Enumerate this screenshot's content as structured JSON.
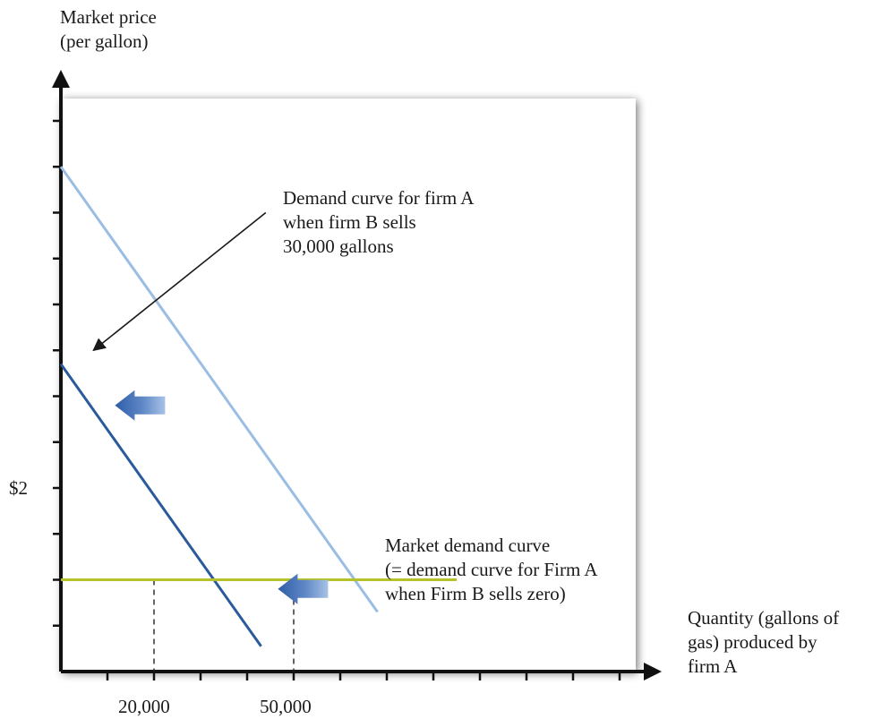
{
  "chart_data": {
    "type": "line",
    "ylabel_lines": [
      "Market price",
      "(per gallon)"
    ],
    "xlabel_lines": [
      "Quantity (gallons of",
      "gas) produced by",
      "firm A"
    ],
    "x_tick_labels": [
      {
        "value": 20000,
        "label": "20,000"
      },
      {
        "value": 50000,
        "label": "50,000"
      }
    ],
    "y_tick_labels": [
      {
        "value": 2,
        "label": "$2"
      }
    ],
    "xlim": [
      0,
      130000
    ],
    "ylim": [
      0,
      12
    ],
    "x_tick_step": 10000,
    "y_tick_step": 1,
    "series": [
      {
        "name": "Market demand curve",
        "color": "#9bbde3",
        "points": [
          [
            0,
            11
          ],
          [
            68000,
            1.3
          ]
        ]
      },
      {
        "name": "Demand curve for firm A when firm B sells 30,000 gallons",
        "color": "#2b5a9c",
        "points": [
          [
            0,
            6.7
          ],
          [
            43000,
            0.55
          ]
        ]
      },
      {
        "name": "$2 price",
        "color": "#b5c22a",
        "points": [
          [
            0,
            2
          ],
          [
            85000,
            2
          ]
        ]
      }
    ],
    "guides": [
      {
        "x": 20000,
        "y": 2
      },
      {
        "x": 50000,
        "y": 2
      }
    ],
    "shift_arrows": [
      {
        "x": 17000,
        "y": 5.8,
        "direction": "left"
      },
      {
        "x": 52000,
        "y": 1.8,
        "direction": "left"
      }
    ],
    "annotations": {
      "firm_a_label": [
        "Demand curve for firm A",
        "when firm B sells",
        "30,000 gallons"
      ],
      "market_label": [
        "Market demand curve",
        "(= demand curve for Firm A",
        "when Firm B sells zero)"
      ],
      "firm_a_pointer": {
        "from": [
          44000,
          10
        ],
        "to": [
          7000,
          7
        ]
      }
    },
    "grid": false,
    "legend": "none"
  }
}
